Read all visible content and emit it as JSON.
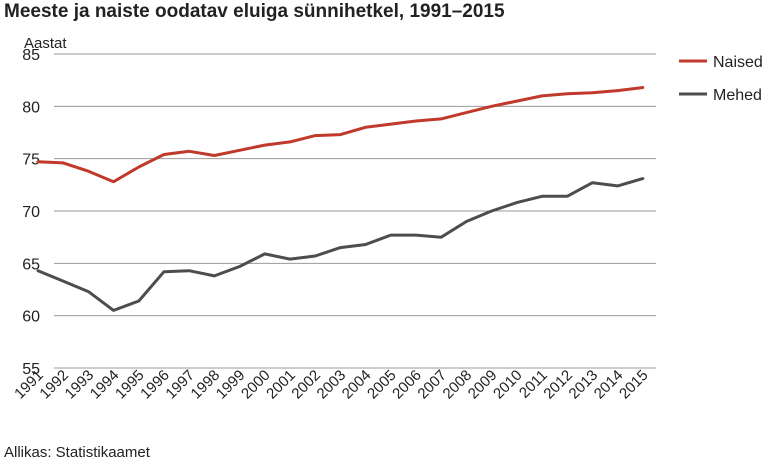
{
  "chart_data": {
    "type": "line",
    "title": "Meeste ja naiste oodatav eluiga sünnihetkel, 1991–2015",
    "ylabel": "Aastat",
    "xlabel": "",
    "source": "Allikas: Statistikaamet",
    "x": [
      "1991",
      "1992",
      "1993",
      "1994",
      "1995",
      "1996",
      "1997",
      "1998",
      "1999",
      "2000",
      "2001",
      "2002",
      "2003",
      "2004",
      "2005",
      "2006",
      "2007",
      "2008",
      "2009",
      "2010",
      "2011",
      "2012",
      "2013",
      "2014",
      "2015"
    ],
    "ylim": [
      55,
      85
    ],
    "yticks": [
      55,
      60,
      65,
      70,
      75,
      80,
      85
    ],
    "grid": true,
    "legend": "right",
    "series": [
      {
        "name": "Naised",
        "color": "#c0392b",
        "values": [
          74.7,
          74.6,
          73.8,
          72.8,
          74.2,
          75.4,
          75.7,
          75.3,
          75.8,
          76.3,
          76.6,
          77.2,
          77.3,
          78.0,
          78.3,
          78.6,
          78.8,
          79.4,
          80.0,
          80.5,
          81.0,
          81.2,
          81.3,
          81.5,
          81.8
        ]
      },
      {
        "name": "Mehed",
        "color": "#4d4d4d",
        "values": [
          64.3,
          63.3,
          62.3,
          60.5,
          61.4,
          64.2,
          64.3,
          63.8,
          64.7,
          65.9,
          65.4,
          65.7,
          66.5,
          66.8,
          67.7,
          67.7,
          67.5,
          69.0,
          70.0,
          70.8,
          71.4,
          71.4,
          72.7,
          72.4,
          73.1
        ]
      }
    ]
  }
}
